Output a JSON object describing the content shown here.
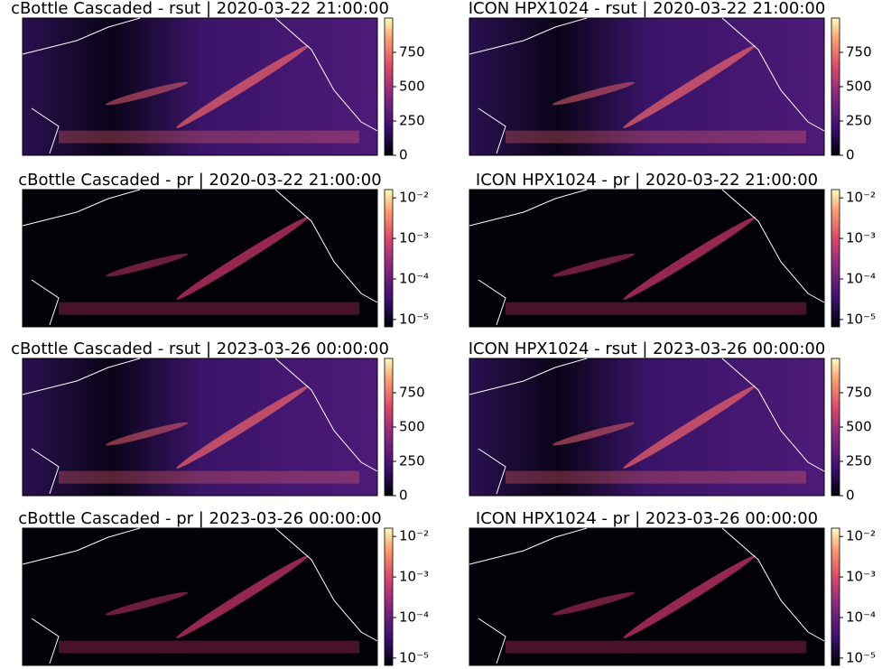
{
  "panels": [
    {
      "title": "cBottle Cascaded - rsut | 2020-03-22 21:00:00",
      "colorbar": {
        "scale": "linear",
        "lim": [
          0,
          1000
        ],
        "ticks": [
          0,
          250,
          500,
          750
        ]
      }
    },
    {
      "title": "ICON HPX1024 - rsut | 2020-03-22 21:00:00",
      "colorbar": {
        "scale": "linear",
        "lim": [
          0,
          1000
        ],
        "ticks": [
          0,
          250,
          500,
          750
        ]
      }
    },
    {
      "title": "cBottle Cascaded - pr | 2020-03-22 21:00:00",
      "colorbar": {
        "scale": "log",
        "lim": [
          6.6e-06,
          0.016
        ],
        "ticks": [
          {
            "value": 1e-05,
            "label": "10⁻⁵"
          },
          {
            "value": 0.0001,
            "label": "10⁻⁴"
          },
          {
            "value": 0.001,
            "label": "10⁻³"
          },
          {
            "value": 0.01,
            "label": "10⁻²"
          }
        ]
      }
    },
    {
      "title": "ICON HPX1024 - pr | 2020-03-22 21:00:00",
      "colorbar": {
        "scale": "log",
        "lim": [
          6.6e-06,
          0.016
        ],
        "ticks": [
          {
            "value": 1e-05,
            "label": "10⁻⁵"
          },
          {
            "value": 0.0001,
            "label": "10⁻⁴"
          },
          {
            "value": 0.001,
            "label": "10⁻³"
          },
          {
            "value": 0.01,
            "label": "10⁻²"
          }
        ]
      }
    },
    {
      "title": "cBottle Cascaded - rsut | 2023-03-26 00:00:00",
      "colorbar": {
        "scale": "linear",
        "lim": [
          0,
          1000
        ],
        "ticks": [
          0,
          250,
          500,
          750
        ]
      }
    },
    {
      "title": "ICON HPX1024 - rsut | 2023-03-26 00:00:00",
      "colorbar": {
        "scale": "linear",
        "lim": [
          0,
          1000
        ],
        "ticks": [
          0,
          250,
          500,
          750
        ]
      }
    },
    {
      "title": "cBottle Cascaded - pr | 2023-03-26 00:00:00",
      "colorbar": {
        "scale": "log",
        "lim": [
          6.6e-06,
          0.016
        ],
        "ticks": [
          {
            "value": 1e-05,
            "label": "10⁻⁵"
          },
          {
            "value": 0.0001,
            "label": "10⁻⁴"
          },
          {
            "value": 0.001,
            "label": "10⁻³"
          },
          {
            "value": 0.01,
            "label": "10⁻²"
          }
        ]
      }
    },
    {
      "title": "ICON HPX1024 - pr | 2023-03-26 00:00:00",
      "colorbar": {
        "scale": "log",
        "lim": [
          6.6e-06,
          0.016
        ],
        "ticks": [
          {
            "value": 1e-05,
            "label": "10⁻⁵"
          },
          {
            "value": 0.0001,
            "label": "10⁻⁴"
          },
          {
            "value": 0.001,
            "label": "10⁻³"
          },
          {
            "value": 0.01,
            "label": "10⁻²"
          }
        ]
      }
    }
  ]
}
